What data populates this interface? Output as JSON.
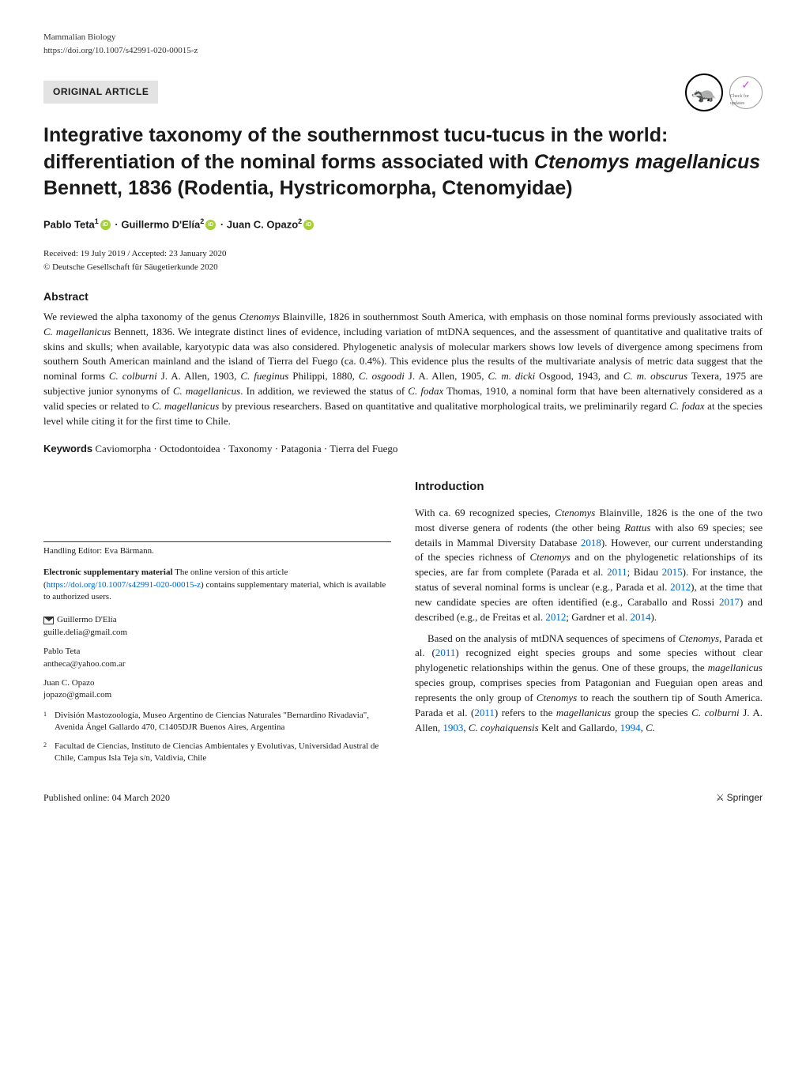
{
  "header": {
    "journal": "Mammalian Biology",
    "doi": "https://doi.org/10.1007/s42991-020-00015-z",
    "article_type": "ORIGINAL ARTICLE",
    "check_updates": "Check for updates"
  },
  "title": {
    "part1": "Integrative taxonomy of the southernmost tucu-tucus in the world: differentiation of the nominal forms associated with ",
    "species": "Ctenomys magellanicus",
    "part2": " Bennett, 1836 (Rodentia, Hystricomorpha, Ctenomyidae)"
  },
  "authors": {
    "a1_name": "Pablo Teta",
    "a1_aff": "1",
    "a2_name": "Guillermo D'Elía",
    "a2_aff": "2",
    "a3_name": "Juan C. Opazo",
    "a3_aff": "2"
  },
  "dates": {
    "received_accepted": "Received: 19 July 2019 / Accepted: 23 January 2020",
    "copyright": "© Deutsche Gesellschaft für Säugetierkunde 2020"
  },
  "abstract": {
    "header": "Abstract",
    "text_p1": "We reviewed the alpha taxonomy of the genus ",
    "text_i1": "Ctenomys",
    "text_p2": " Blainville, 1826 in southernmost South America, with emphasis on those nominal forms previously associated with ",
    "text_i2": "C. magellanicus",
    "text_p3": " Bennett, 1836. We integrate distinct lines of evidence, including variation of mtDNA sequences, and the assessment of quantitative and qualitative traits of skins and skulls; when available, karyotypic data was also considered. Phylogenetic analysis of molecular markers shows low levels of divergence among specimens from southern South American mainland and the island of Tierra del Fuego (ca. 0.4%). This evidence plus the results of the multivariate analysis of metric data suggest that the nominal forms ",
    "text_i3": "C. colburni",
    "text_p4": " J. A. Allen, 1903, ",
    "text_i4": "C. fueginus",
    "text_p5": " Philippi, 1880, ",
    "text_i5": "C. osgoodi",
    "text_p6": " J. A. Allen, 1905, ",
    "text_i6": "C. m. dicki",
    "text_p7": " Osgood, 1943, and ",
    "text_i7": "C. m. obscurus",
    "text_p8": " Texera, 1975 are subjective junior synonyms of ",
    "text_i8": "C. magellanicus",
    "text_p9": ". In addition, we reviewed the status of ",
    "text_i9": "C. fodax",
    "text_p10": " Thomas, 1910, a nominal form that have been alternatively considered as a valid species or related to ",
    "text_i10": "C. magellanicus",
    "text_p11": " by previous researchers. Based on quantitative and qualitative morphological traits, we preliminarily regard ",
    "text_i11": "C. fodax",
    "text_p12": " at the species level while citing it for the first time to Chile."
  },
  "keywords": {
    "label": "Keywords",
    "text": " Caviomorpha · Octodontoidea · Taxonomy · Patagonia · Tierra del Fuego"
  },
  "left_col": {
    "editor": "Handling Editor: Eva Bärmann.",
    "supp_label": "Electronic supplementary material",
    "supp_text1": " The online version of this article (",
    "supp_link": "https://doi.org/10.1007/s42991-020-00015-z",
    "supp_text2": ") contains supplementary material, which is available to authorized users.",
    "corresp_name": "Guillermo D'Elía",
    "corresp_email": "guille.delia@gmail.com",
    "auth2_name": "Pablo Teta",
    "auth2_email": "antheca@yahoo.com.ar",
    "auth3_name": "Juan C. Opazo",
    "auth3_email": "jopazo@gmail.com",
    "aff1_num": "1",
    "aff1_text": "División Mastozoología, Museo Argentino de Ciencias Naturales \"Bernardino Rivadavia\", Avenida Ángel Gallardo 470, C1405DJR Buenos Aires, Argentina",
    "aff2_num": "2",
    "aff2_text": "Facultad de Ciencias, Instituto de Ciencias Ambientales y Evolutivas, Universidad Austral de Chile, Campus Isla Teja s/n, Valdivia, Chile"
  },
  "intro": {
    "header": "Introduction",
    "p1_t1": "With ca. 69 recognized species, ",
    "p1_i1": "Ctenomys",
    "p1_t2": " Blainville, 1826 is the one of the two most diverse genera of rodents (the other being ",
    "p1_i2": "Rattus",
    "p1_t3": " with also 69 species; see details in Mammal Diversity Database ",
    "p1_l1": "2018",
    "p1_t4": "). However, our current understanding of the species richness of ",
    "p1_i3": "Ctenomys",
    "p1_t5": " and on the phylogenetic relationships of its species, are far from complete (Parada et al. ",
    "p1_l2": "2011",
    "p1_t6": "; Bidau ",
    "p1_l3": "2015",
    "p1_t7": "). For instance, the status of several nominal forms is unclear (e.g., Parada et al. ",
    "p1_l4": "2012",
    "p1_t8": "), at the time that new candidate species are often identified (e.g., Caraballo and Rossi ",
    "p1_l5": "2017",
    "p1_t9": ") and described (e.g., de Freitas et al. ",
    "p1_l6": "2012",
    "p1_t10": "; Gardner et al. ",
    "p1_l7": "2014",
    "p1_t11": ").",
    "p2_t1": "Based on the analysis of mtDNA sequences of specimens of ",
    "p2_i1": "Ctenomys",
    "p2_t2": ", Parada et al. (",
    "p2_l1": "2011",
    "p2_t3": ") recognized eight species groups and some species without clear phylogenetic relationships within the genus. One of these groups, the ",
    "p2_i2": "magellanicus",
    "p2_t4": " species group, comprises species from Patagonian and Fueguian open areas and represents the only group of ",
    "p2_i3": "Ctenomys",
    "p2_t5": " to reach the southern tip of South America. Parada et al. (",
    "p2_l2": "2011",
    "p2_t6": ") refers to the ",
    "p2_i4": "magellanicus",
    "p2_t7": " group the species ",
    "p2_i5": "C. colburni",
    "p2_t8": " J. A. Allen, ",
    "p2_l3": "1903",
    "p2_t9": ", ",
    "p2_i6": "C. coyhaiquensis",
    "p2_t10": " Kelt and Gallardo, ",
    "p2_l4": "1994",
    "p2_t11": ", ",
    "p2_i7": "C."
  },
  "footer": {
    "published": "Published online: 04 March 2020",
    "publisher": "Springer"
  }
}
